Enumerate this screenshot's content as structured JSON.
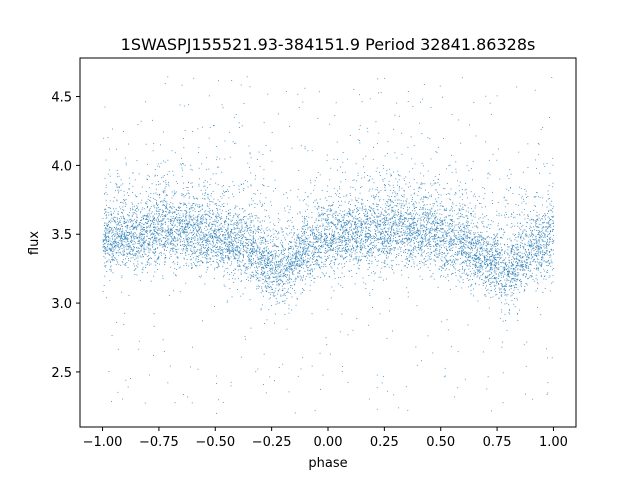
{
  "chart_data": {
    "type": "scatter",
    "title": "1SWASPJ155521.93-384151.9 Period 32841.86328s",
    "xlabel": "phase",
    "ylabel": "flux",
    "xlim": [
      -1.1,
      1.1
    ],
    "ylim": [
      2.1,
      4.78
    ],
    "xticks": [
      -1.0,
      -0.75,
      -0.5,
      -0.25,
      0.0,
      0.25,
      0.5,
      0.75,
      1.0
    ],
    "xtick_labels": [
      "−1.00",
      "−0.75",
      "−0.50",
      "−0.25",
      "0.00",
      "0.25",
      "0.50",
      "0.75",
      "1.00"
    ],
    "yticks": [
      2.5,
      3.0,
      3.5,
      4.0,
      4.5
    ],
    "ytick_labels": [
      "2.5",
      "3.0",
      "3.5",
      "4.0",
      "4.5"
    ],
    "grid": false,
    "point_color": "#1f77b4",
    "profile": {
      "phase": [
        -1.0,
        -0.9,
        -0.8,
        -0.7,
        -0.6,
        -0.5,
        -0.4,
        -0.3,
        -0.22,
        -0.15,
        -0.1,
        0.0,
        0.1,
        0.2,
        0.3,
        0.4,
        0.5,
        0.6,
        0.7,
        0.78,
        0.85,
        0.9,
        1.0
      ],
      "flux": [
        3.45,
        3.47,
        3.5,
        3.52,
        3.5,
        3.47,
        3.42,
        3.32,
        3.2,
        3.3,
        3.38,
        3.45,
        3.48,
        3.5,
        3.52,
        3.5,
        3.47,
        3.42,
        3.32,
        3.2,
        3.3,
        3.38,
        3.45
      ]
    },
    "scatter_std": 0.12,
    "outlier_range": [
      2.2,
      4.65
    ]
  }
}
